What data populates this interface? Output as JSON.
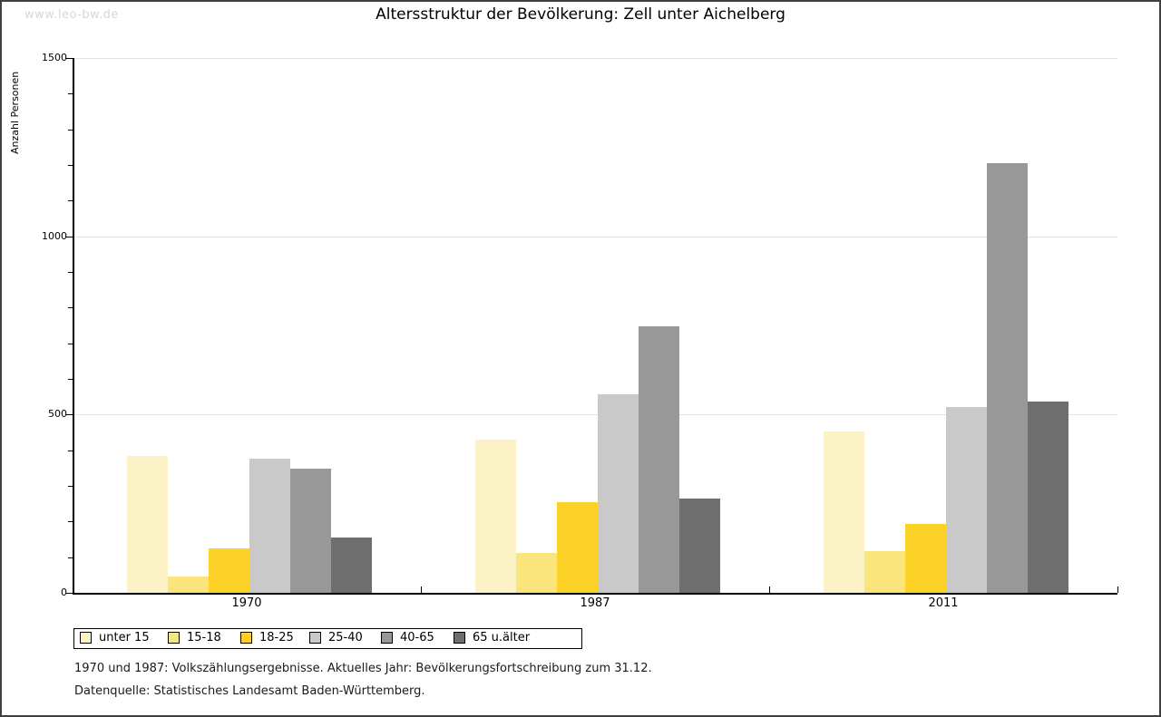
{
  "watermark": "www.leo-bw.de",
  "title": "Altersstruktur der Bevölkerung: Zell unter Aichelberg",
  "footnotes": [
    "1970 und 1987: Volkszählungsergebnisse. Aktuelles Jahr: Bevölkerungsfortschreibung zum 31.12.",
    "Datenquelle: Statistisches Landesamt Baden-Württemberg."
  ],
  "chart_data": {
    "type": "bar",
    "title": "Altersstruktur der Bevölkerung: Zell unter Aichelberg",
    "xlabel": "",
    "ylabel": "Anzahl Personen",
    "ylim": [
      0,
      1500
    ],
    "yticks_major": [
      0,
      500,
      1000,
      1500
    ],
    "ytick_minor_step": 100,
    "grid": "horizontal-major",
    "legend_position": "bottom-left",
    "categories": [
      "1970",
      "1987",
      "2011"
    ],
    "series": [
      {
        "name": "unter 15",
        "color": "#FBF3C6",
        "values": [
          385,
          430,
          453
        ]
      },
      {
        "name": "15-18",
        "color": "#FAE57D",
        "values": [
          47,
          113,
          118
        ]
      },
      {
        "name": "18-25",
        "color": "#FCD228",
        "values": [
          125,
          255,
          193
        ]
      },
      {
        "name": "25-40",
        "color": "#C9C9C9",
        "values": [
          377,
          556,
          522
        ]
      },
      {
        "name": "40-65",
        "color": "#989898",
        "values": [
          348,
          748,
          1205
        ]
      },
      {
        "name": "65 u.älter",
        "color": "#6E6E6E",
        "values": [
          156,
          265,
          537
        ]
      }
    ],
    "colors": {
      "gridline": "#e2e2e2",
      "axis": "#000000"
    }
  }
}
